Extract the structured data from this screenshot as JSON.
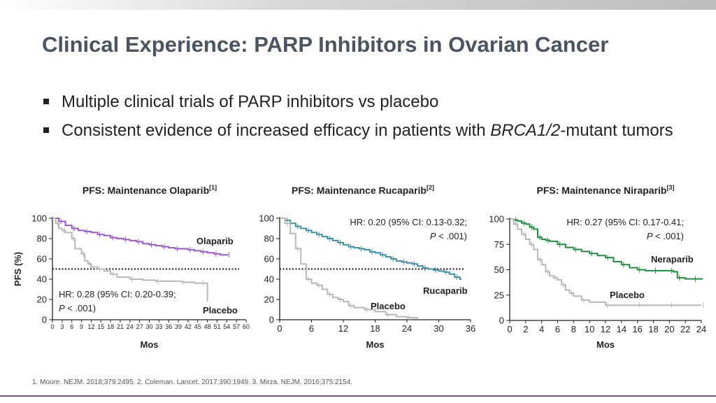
{
  "slide": {
    "title": "Clinical Experience: PARP Inhibitors in Ovarian Cancer",
    "bullets": [
      {
        "text": "Multiple clinical trials of PARP inhibitors vs placebo"
      },
      {
        "pre": "Consistent evidence of increased efficacy in patients with ",
        "em": "BRCA1/2",
        "post": "-mutant tumors"
      }
    ],
    "footnote": "1. Moore. NEJM. 2018;379:2495. 2. Coleman. Lancet. 2017;390:1949. 3. Mirza. NEJM. 2016;375:2154."
  },
  "chart_data": [
    {
      "type": "line",
      "title": "PFS: Maintenance Olaparib",
      "title_ref": "[1]",
      "xlabel": "Mos",
      "ylabel": "PFS (%)",
      "xlim": [
        0,
        60
      ],
      "ylim": [
        0,
        100
      ],
      "xticks": [
        0,
        3,
        6,
        9,
        12,
        15,
        18,
        21,
        24,
        27,
        30,
        33,
        36,
        39,
        42,
        45,
        48,
        51,
        54,
        57,
        60
      ],
      "yticks": [
        0,
        20,
        40,
        60,
        80,
        100
      ],
      "reference_line_y": 50,
      "annotation": {
        "line1": "HR: 0.28 (95% CI: 0.20-0.39;",
        "line2_p": "P",
        "line2_rest": " < .001)"
      },
      "series": [
        {
          "name": "Olaparib",
          "color": "#9b59c9",
          "x": [
            0,
            2,
            4,
            6,
            8,
            10,
            12,
            14,
            16,
            18,
            20,
            22,
            24,
            26,
            28,
            30,
            32,
            34,
            36,
            38,
            40,
            42,
            44,
            46,
            48,
            50,
            52,
            54
          ],
          "y": [
            100,
            97,
            93,
            90,
            88,
            87,
            86,
            84,
            83,
            81,
            80,
            79,
            78,
            77,
            75,
            74,
            73,
            72,
            71,
            70,
            70,
            69,
            68,
            67,
            66,
            65,
            64,
            64
          ]
        },
        {
          "name": "Placebo",
          "color": "#b8b8b8",
          "x": [
            0,
            1,
            2,
            3,
            4,
            6,
            7,
            9,
            10,
            11,
            12,
            14,
            16,
            18,
            20,
            24,
            28,
            32,
            36,
            40,
            44,
            46,
            48
          ],
          "y": [
            100,
            95,
            90,
            88,
            86,
            80,
            70,
            65,
            58,
            55,
            52,
            50,
            48,
            45,
            42,
            40,
            39,
            38,
            38,
            37,
            36,
            36,
            18
          ]
        }
      ]
    },
    {
      "type": "line",
      "title": "PFS: Maintenance Rucaparib",
      "title_ref": "[2]",
      "xlabel": "Mos",
      "ylabel": "",
      "xlim": [
        0,
        36
      ],
      "ylim": [
        0,
        100
      ],
      "xticks": [
        0,
        6,
        12,
        18,
        24,
        30,
        36
      ],
      "yticks": [
        0,
        20,
        40,
        60,
        80,
        100
      ],
      "reference_line_y": 50,
      "annotation": {
        "line1": "HR: 0.20 (95% CI: 0.13-0.32;",
        "line2_p": "P",
        "line2_rest": " < .001)"
      },
      "series": [
        {
          "name": "Rucaparib",
          "color": "#3d8fa8",
          "x": [
            0,
            1,
            2,
            3,
            4,
            5,
            6,
            7,
            8,
            9,
            10,
            11,
            12,
            13,
            14,
            15,
            16,
            17,
            18,
            19,
            20,
            21,
            22,
            23,
            24,
            25,
            26,
            27,
            28,
            29,
            30,
            31,
            32,
            33,
            34
          ],
          "y": [
            100,
            98,
            95,
            92,
            90,
            88,
            86,
            84,
            82,
            80,
            78,
            76,
            74,
            72,
            71,
            70,
            69,
            67,
            66,
            64,
            62,
            60,
            58,
            57,
            56,
            55,
            53,
            51,
            50,
            49,
            48,
            47,
            45,
            42,
            40
          ]
        },
        {
          "name": "Placebo",
          "color": "#b8b8b8",
          "x": [
            0,
            1,
            2,
            3,
            4,
            5,
            6,
            7,
            8,
            9,
            10,
            11,
            12,
            13,
            14,
            16,
            18,
            20,
            22,
            24,
            26
          ],
          "y": [
            100,
            95,
            85,
            70,
            55,
            40,
            36,
            34,
            30,
            25,
            22,
            20,
            18,
            14,
            12,
            10,
            8,
            5,
            3,
            2,
            1
          ]
        }
      ]
    },
    {
      "type": "line",
      "title": "PFS: Maintenance Niraparib",
      "title_ref": "[3]",
      "xlabel": "Mos",
      "ylabel": "",
      "xlim": [
        0,
        24
      ],
      "ylim": [
        0,
        100
      ],
      "xticks": [
        0,
        2,
        4,
        6,
        8,
        10,
        12,
        14,
        16,
        18,
        20,
        22,
        24
      ],
      "yticks": [
        0,
        25,
        50,
        75,
        100
      ],
      "reference_line_y": null,
      "annotation": {
        "line1": "HR: 0.27 (95% CI: 0.17-0.41;",
        "line2_p": "P",
        "line2_rest": " < .001)"
      },
      "series": [
        {
          "name": "Neraparib",
          "color": "#1f8f3e",
          "x": [
            0,
            0.5,
            1,
            1.5,
            2,
            2.5,
            3,
            3.5,
            4,
            4.5,
            5,
            6,
            7,
            8,
            9,
            10,
            11,
            12,
            13,
            14,
            15,
            16,
            17,
            18,
            19,
            20,
            20.5,
            21,
            22,
            23,
            24
          ],
          "y": [
            100,
            99,
            98,
            96,
            95,
            92,
            90,
            82,
            80,
            79,
            78,
            75,
            72,
            70,
            68,
            66,
            64,
            62,
            58,
            55,
            52,
            50,
            49,
            49,
            49,
            49,
            48,
            42,
            41,
            41,
            41
          ]
        },
        {
          "name": "Placebo",
          "color": "#b8b8b8",
          "x": [
            0,
            0.5,
            1,
            1.5,
            2,
            2.5,
            3,
            3.5,
            4,
            4.5,
            5,
            5.5,
            6,
            6.5,
            7,
            7.5,
            8,
            9,
            10,
            12,
            14,
            16,
            18,
            20,
            22,
            24
          ],
          "y": [
            100,
            95,
            90,
            85,
            80,
            75,
            70,
            60,
            55,
            48,
            44,
            42,
            40,
            35,
            30,
            27,
            24,
            20,
            18,
            15,
            15,
            15,
            15,
            15,
            15,
            15
          ]
        }
      ]
    }
  ]
}
